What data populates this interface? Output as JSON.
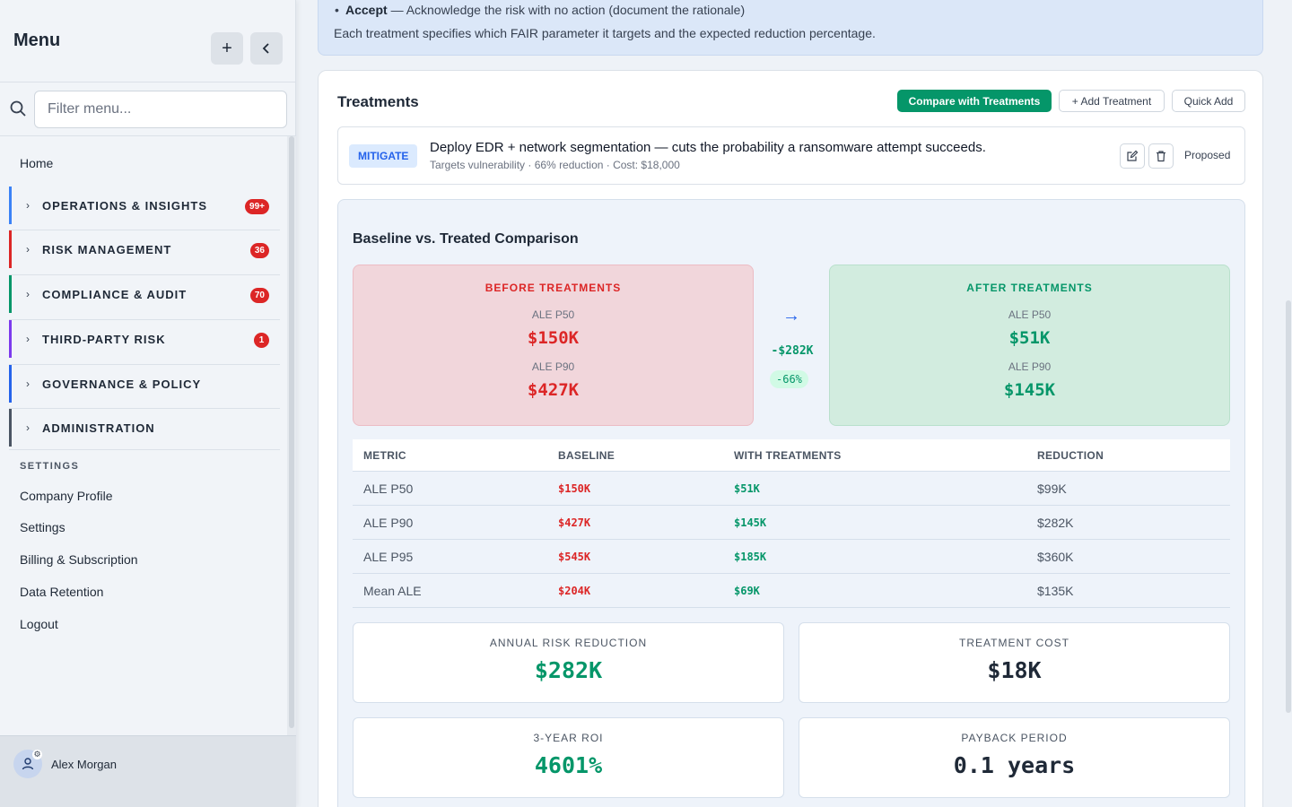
{
  "sidebar": {
    "title": "Menu",
    "add_icon": "plus-icon",
    "collapse_icon": "chevron-left-icon",
    "search_placeholder": "Filter menu...",
    "home": "Home",
    "groups": [
      {
        "label": "OPERATIONS & INSIGHTS",
        "badge": "99+",
        "color": "#3b82f6"
      },
      {
        "label": "RISK MANAGEMENT",
        "badge": "36",
        "color": "#dc2626"
      },
      {
        "label": "COMPLIANCE & AUDIT",
        "badge": "70",
        "color": "#059669"
      },
      {
        "label": "THIRD-PARTY RISK",
        "badge": "1",
        "color": "#7c3aed"
      },
      {
        "label": "GOVERNANCE & POLICY",
        "badge": "",
        "color": "#2563eb"
      },
      {
        "label": "ADMINISTRATION",
        "badge": "",
        "color": "#4b5563"
      }
    ],
    "settings_heading": "SETTINGS",
    "settings_items": [
      "Company Profile",
      "Settings",
      "Billing & Subscription",
      "Data Retention",
      "Logout"
    ],
    "user": {
      "name": "Alex Morgan"
    }
  },
  "info": {
    "bullet_term": "Accept",
    "bullet_text": " — Acknowledge the risk with no action (document the rationale)",
    "footer": "Each treatment specifies which FAIR parameter it targets and the expected reduction percentage."
  },
  "treatments": {
    "title": "Treatments",
    "compare_label": "Compare with Treatments",
    "add_label": "+ Add Treatment",
    "quick_label": "Quick Add",
    "item": {
      "tag": "MITIGATE",
      "title": "Deploy EDR + network segmentation — cuts the probability a ransomware attempt succeeds.",
      "meta": "Targets vulnerability · 66% reduction · Cost: $18,000",
      "status": "Proposed"
    }
  },
  "comparison": {
    "title": "Baseline vs. Treated Comparison",
    "before": {
      "heading": "BEFORE TREATMENTS",
      "p50_label": "ALE P50",
      "p50": "$150K",
      "p90_label": "ALE P90",
      "p90": "$427K"
    },
    "after": {
      "heading": "AFTER TREATMENTS",
      "p50_label": "ALE P50",
      "p50": "$51K",
      "p90_label": "ALE P90",
      "p90": "$145K"
    },
    "arrow": "→",
    "delta": "-$282K",
    "delta_pct": "-66%",
    "table": {
      "headers": [
        "METRIC",
        "BASELINE",
        "WITH TREATMENTS",
        "REDUCTION"
      ],
      "rows": [
        [
          "ALE P50",
          "$150K",
          "$51K",
          "$99K"
        ],
        [
          "ALE P90",
          "$427K",
          "$145K",
          "$282K"
        ],
        [
          "ALE P95",
          "$545K",
          "$185K",
          "$360K"
        ],
        [
          "Mean ALE",
          "$204K",
          "$69K",
          "$135K"
        ]
      ]
    },
    "metrics": [
      {
        "label": "ANNUAL RISK REDUCTION",
        "value": "$282K",
        "color": "#059669"
      },
      {
        "label": "TREATMENT COST",
        "value": "$18K",
        "color": "#1f2937"
      },
      {
        "label": "3-YEAR ROI",
        "value": "4601%",
        "color": "#059669"
      },
      {
        "label": "PAYBACK PERIOD",
        "value": "0.1 years",
        "color": "#1f2937"
      }
    ]
  }
}
